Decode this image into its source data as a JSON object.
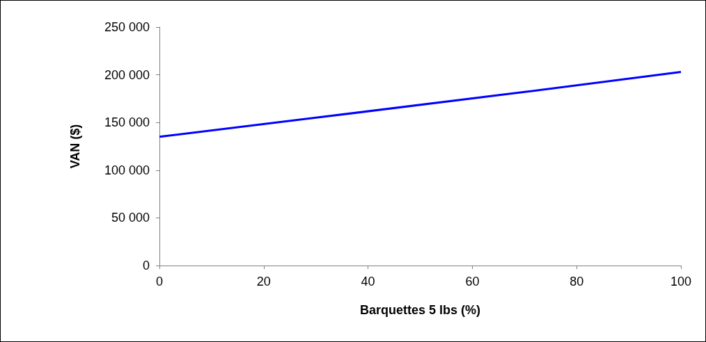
{
  "chart_data": {
    "type": "line",
    "xlabel": "Barquettes 5 lbs (%)",
    "ylabel": "VAN ($)",
    "x": [
      0,
      30,
      70,
      100
    ],
    "series": [
      {
        "color": "#0000ff",
        "values": [
          135000,
          155000,
          182000,
          203000
        ]
      }
    ],
    "xlim": [
      0,
      100
    ],
    "xticks": [
      0,
      20,
      40,
      60,
      80,
      100
    ],
    "ylim": [
      0,
      250000
    ],
    "yticks": [
      {
        "value": 0,
        "label": "0"
      },
      {
        "value": 50000,
        "label": "50 000"
      },
      {
        "value": 100000,
        "label": "100 000"
      },
      {
        "value": 150000,
        "label": "150 000"
      },
      {
        "value": 200000,
        "label": "200 000"
      },
      {
        "value": 250000,
        "label": "250 000"
      }
    ],
    "grid": false,
    "marker": "none",
    "line_style": "solid"
  }
}
